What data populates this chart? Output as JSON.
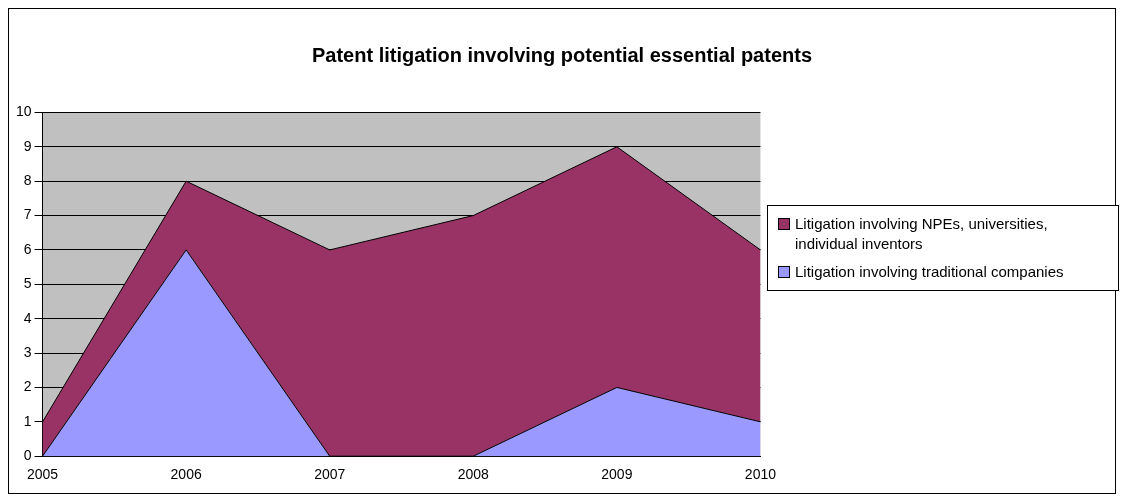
{
  "chart_data": {
    "type": "area",
    "title": "Patent litigation involving potential essential patents",
    "categories": [
      "2005",
      "2006",
      "2007",
      "2008",
      "2009",
      "2010"
    ],
    "stacked": true,
    "series": [
      {
        "name": "Litigation involving traditional companies",
        "color": "#9999ff",
        "values": [
          0,
          6,
          0,
          0,
          2,
          1
        ]
      },
      {
        "name": "Litigation involving NPEs, universities, individual inventors",
        "color": "#993366",
        "values": [
          1,
          2,
          6,
          7,
          7,
          5
        ]
      }
    ],
    "ylim": [
      0,
      10
    ],
    "yticks": [
      0,
      1,
      2,
      3,
      4,
      5,
      6,
      7,
      8,
      9,
      10
    ],
    "grid": "y",
    "legend": "right"
  }
}
